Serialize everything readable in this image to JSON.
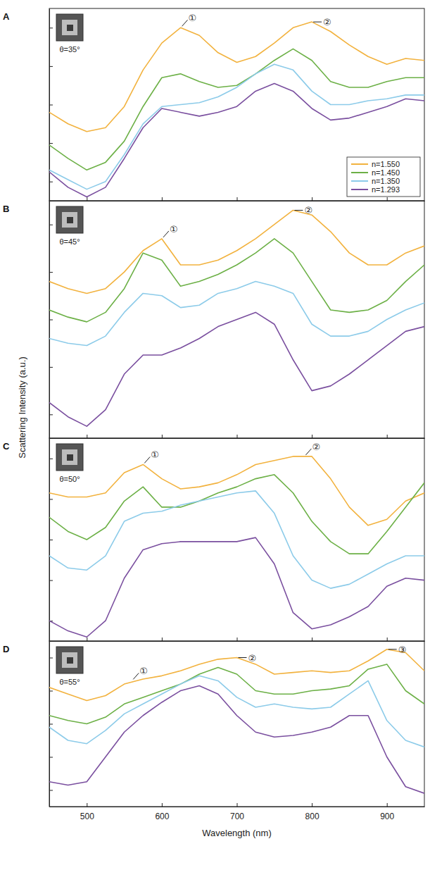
{
  "ylabel": "Scattering Intensity (a.u.)",
  "chart_data": [
    {
      "type": "line",
      "panel": "A",
      "inset_label": "θ=35°",
      "x": [
        450,
        475,
        500,
        525,
        550,
        575,
        600,
        625,
        650,
        675,
        700,
        725,
        750,
        775,
        800,
        825,
        850,
        875,
        900,
        925,
        950
      ],
      "xlim": [
        450,
        950
      ],
      "xticks": [
        500,
        600,
        700,
        800,
        900
      ],
      "ylim": [
        0,
        1
      ],
      "yticks": [
        0.1,
        0.3,
        0.5,
        0.7,
        0.9
      ],
      "tick_labels": false,
      "legend": "lower right",
      "series": [
        {
          "name": "n=1.550",
          "color": "#f2b23e",
          "values": [
            0.46,
            0.4,
            0.36,
            0.38,
            0.49,
            0.68,
            0.82,
            0.9,
            0.86,
            0.77,
            0.72,
            0.75,
            0.82,
            0.9,
            0.93,
            0.88,
            0.81,
            0.75,
            0.71,
            0.74,
            0.73
          ]
        },
        {
          "name": "n=1.450",
          "color": "#6cb046",
          "values": [
            0.29,
            0.22,
            0.16,
            0.2,
            0.31,
            0.49,
            0.64,
            0.66,
            0.62,
            0.59,
            0.6,
            0.66,
            0.73,
            0.79,
            0.73,
            0.62,
            0.59,
            0.59,
            0.62,
            0.64,
            0.64
          ]
        },
        {
          "name": "n=1.350",
          "color": "#8ccbe9",
          "values": [
            0.16,
            0.11,
            0.06,
            0.1,
            0.24,
            0.4,
            0.49,
            0.5,
            0.51,
            0.54,
            0.59,
            0.66,
            0.71,
            0.68,
            0.57,
            0.5,
            0.5,
            0.52,
            0.53,
            0.55,
            0.55
          ]
        },
        {
          "name": "n=1.293",
          "color": "#7a4f9f",
          "values": [
            0.15,
            0.07,
            0.02,
            0.07,
            0.22,
            0.38,
            0.48,
            0.46,
            0.44,
            0.46,
            0.49,
            0.57,
            0.61,
            0.57,
            0.48,
            0.42,
            0.43,
            0.46,
            0.49,
            0.53,
            0.52
          ]
        }
      ],
      "annotations": [
        {
          "text": "①",
          "x": 625,
          "y": 0.9
        },
        {
          "text": "②",
          "x": 800,
          "y": 0.93
        }
      ]
    },
    {
      "type": "line",
      "panel": "B",
      "inset_label": "θ=45°",
      "x": [
        450,
        475,
        500,
        525,
        550,
        575,
        600,
        625,
        650,
        675,
        700,
        725,
        750,
        775,
        800,
        825,
        850,
        875,
        900,
        925,
        950
      ],
      "xlim": [
        450,
        950
      ],
      "xticks": [
        500,
        600,
        700,
        800,
        900
      ],
      "ylim": [
        0,
        1
      ],
      "yticks": [
        0.1,
        0.3,
        0.5,
        0.7,
        0.9
      ],
      "tick_labels": false,
      "legend": false,
      "series": [
        {
          "name": "n=1.550",
          "color": "#f2b23e",
          "values": [
            0.66,
            0.63,
            0.61,
            0.63,
            0.7,
            0.79,
            0.84,
            0.73,
            0.73,
            0.75,
            0.79,
            0.84,
            0.9,
            0.96,
            0.94,
            0.87,
            0.78,
            0.73,
            0.73,
            0.78,
            0.81
          ]
        },
        {
          "name": "n=1.450",
          "color": "#6cb046",
          "values": [
            0.54,
            0.51,
            0.49,
            0.53,
            0.63,
            0.78,
            0.75,
            0.64,
            0.66,
            0.69,
            0.73,
            0.78,
            0.84,
            0.78,
            0.66,
            0.54,
            0.53,
            0.54,
            0.58,
            0.66,
            0.73
          ]
        },
        {
          "name": "n=1.350",
          "color": "#8ccbe9",
          "values": [
            0.42,
            0.4,
            0.39,
            0.43,
            0.53,
            0.61,
            0.6,
            0.55,
            0.56,
            0.61,
            0.63,
            0.66,
            0.64,
            0.61,
            0.48,
            0.43,
            0.43,
            0.45,
            0.5,
            0.54,
            0.57
          ]
        },
        {
          "name": "n=1.293",
          "color": "#7a4f9f",
          "values": [
            0.15,
            0.09,
            0.05,
            0.12,
            0.27,
            0.35,
            0.35,
            0.38,
            0.42,
            0.47,
            0.5,
            0.53,
            0.48,
            0.33,
            0.2,
            0.22,
            0.27,
            0.33,
            0.39,
            0.45,
            0.47
          ]
        }
      ],
      "annotations": [
        {
          "text": "①",
          "x": 600,
          "y": 0.84
        },
        {
          "text": "②",
          "x": 775,
          "y": 0.96
        }
      ]
    },
    {
      "type": "line",
      "panel": "C",
      "inset_label": "θ=50°",
      "x": [
        450,
        475,
        500,
        525,
        550,
        575,
        600,
        625,
        650,
        675,
        700,
        725,
        750,
        775,
        800,
        825,
        850,
        875,
        900,
        925,
        950
      ],
      "xlim": [
        450,
        950
      ],
      "xticks": [
        500,
        600,
        700,
        800,
        900
      ],
      "ylim": [
        0,
        1
      ],
      "yticks": [
        0.1,
        0.3,
        0.5,
        0.7,
        0.9
      ],
      "tick_labels": false,
      "legend": false,
      "series": [
        {
          "name": "n=1.550",
          "color": "#f2b23e",
          "values": [
            0.73,
            0.71,
            0.71,
            0.73,
            0.83,
            0.87,
            0.8,
            0.75,
            0.76,
            0.78,
            0.82,
            0.87,
            0.89,
            0.91,
            0.91,
            0.8,
            0.66,
            0.57,
            0.6,
            0.69,
            0.73
          ]
        },
        {
          "name": "n=1.450",
          "color": "#6cb046",
          "values": [
            0.61,
            0.54,
            0.5,
            0.56,
            0.69,
            0.76,
            0.66,
            0.66,
            0.69,
            0.73,
            0.76,
            0.8,
            0.82,
            0.73,
            0.59,
            0.49,
            0.43,
            0.43,
            0.54,
            0.66,
            0.78
          ]
        },
        {
          "name": "n=1.350",
          "color": "#8ccbe9",
          "values": [
            0.42,
            0.36,
            0.35,
            0.42,
            0.59,
            0.63,
            0.64,
            0.67,
            0.69,
            0.71,
            0.73,
            0.74,
            0.63,
            0.42,
            0.3,
            0.26,
            0.28,
            0.33,
            0.38,
            0.42,
            0.42
          ]
        },
        {
          "name": "n=1.293",
          "color": "#7a4f9f",
          "values": [
            0.1,
            0.05,
            0.02,
            0.1,
            0.31,
            0.45,
            0.48,
            0.49,
            0.49,
            0.49,
            0.49,
            0.51,
            0.38,
            0.14,
            0.06,
            0.08,
            0.12,
            0.17,
            0.27,
            0.31,
            0.3
          ]
        }
      ],
      "annotations": [
        {
          "text": "①",
          "x": 575,
          "y": 0.87
        },
        {
          "text": "②",
          "x": 790,
          "y": 0.91
        }
      ]
    },
    {
      "type": "line",
      "panel": "D",
      "inset_label": "θ=55°",
      "xlabel": "Wavelength (nm)",
      "x": [
        450,
        475,
        500,
        525,
        550,
        575,
        600,
        625,
        650,
        675,
        700,
        725,
        750,
        775,
        800,
        825,
        850,
        875,
        900,
        925,
        950
      ],
      "xlim": [
        450,
        950
      ],
      "xticks": [
        500,
        600,
        700,
        800,
        900
      ],
      "ylim": [
        0,
        1
      ],
      "yticks": [
        0.1,
        0.3,
        0.5,
        0.7,
        0.9
      ],
      "tick_labels": "x",
      "legend": false,
      "series": [
        {
          "name": "n=1.550",
          "color": "#f2b23e",
          "values": [
            0.72,
            0.68,
            0.64,
            0.67,
            0.74,
            0.77,
            0.79,
            0.82,
            0.86,
            0.89,
            0.9,
            0.86,
            0.8,
            0.81,
            0.82,
            0.81,
            0.82,
            0.88,
            0.95,
            0.93,
            0.82
          ]
        },
        {
          "name": "n=1.450",
          "color": "#6cb046",
          "values": [
            0.55,
            0.52,
            0.5,
            0.54,
            0.62,
            0.66,
            0.7,
            0.74,
            0.8,
            0.84,
            0.8,
            0.7,
            0.68,
            0.68,
            0.7,
            0.71,
            0.73,
            0.83,
            0.86,
            0.7,
            0.62
          ]
        },
        {
          "name": "n=1.350",
          "color": "#8ccbe9",
          "values": [
            0.48,
            0.4,
            0.38,
            0.46,
            0.56,
            0.62,
            0.68,
            0.74,
            0.79,
            0.76,
            0.66,
            0.6,
            0.62,
            0.6,
            0.59,
            0.6,
            0.68,
            0.76,
            0.52,
            0.4,
            0.36
          ]
        },
        {
          "name": "n=1.293",
          "color": "#7a4f9f",
          "values": [
            0.15,
            0.13,
            0.15,
            0.3,
            0.45,
            0.55,
            0.63,
            0.7,
            0.73,
            0.68,
            0.55,
            0.45,
            0.42,
            0.43,
            0.45,
            0.48,
            0.55,
            0.55,
            0.3,
            0.12,
            0.08
          ]
        }
      ],
      "annotations": [
        {
          "text": "①",
          "x": 560,
          "y": 0.76
        },
        {
          "text": "②",
          "x": 700,
          "y": 0.9
        },
        {
          "text": "③",
          "x": 900,
          "y": 0.95
        }
      ]
    }
  ]
}
